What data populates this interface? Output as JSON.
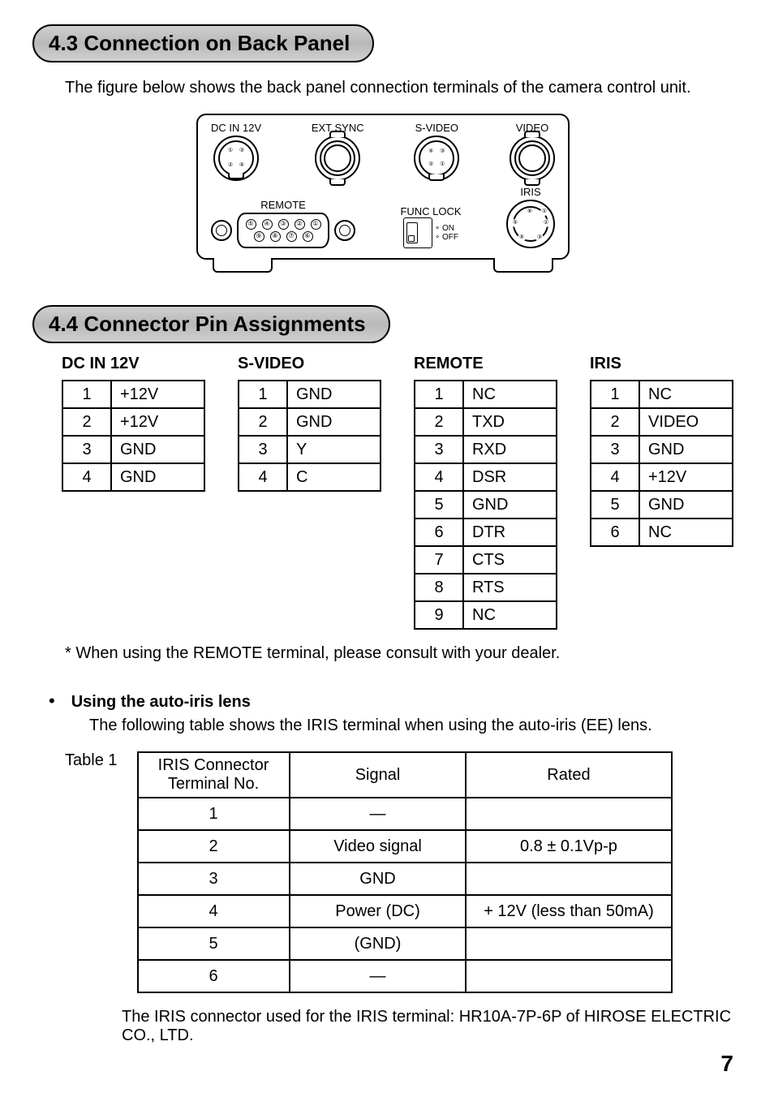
{
  "section43": {
    "title": "4.3  Connection on Back Panel",
    "intro": "The figure below shows the back panel connection terminals of the camera control unit."
  },
  "diagram": {
    "labels": {
      "dc": "DC IN 12V",
      "ext": "EXT SYNC",
      "svideo": "S-VIDEO",
      "video": "VIDEO",
      "remote": "REMOTE",
      "funclock": "FUNC LOCK",
      "iris": "IRIS",
      "on": "ON",
      "off": "OFF"
    }
  },
  "section44": {
    "title": "4.4  Connector Pin Assignments"
  },
  "pins": {
    "dc": {
      "title": "DC IN 12V",
      "rows": [
        [
          "1",
          "+12V"
        ],
        [
          "2",
          "+12V"
        ],
        [
          "3",
          "GND"
        ],
        [
          "4",
          "GND"
        ]
      ]
    },
    "svideo": {
      "title": "S-VIDEO",
      "rows": [
        [
          "1",
          "GND"
        ],
        [
          "2",
          "GND"
        ],
        [
          "3",
          "Y"
        ],
        [
          "4",
          "C"
        ]
      ]
    },
    "remote": {
      "title": "REMOTE",
      "rows": [
        [
          "1",
          "NC"
        ],
        [
          "2",
          "TXD"
        ],
        [
          "3",
          "RXD"
        ],
        [
          "4",
          "DSR"
        ],
        [
          "5",
          "GND"
        ],
        [
          "6",
          "DTR"
        ],
        [
          "7",
          "CTS"
        ],
        [
          "8",
          "RTS"
        ],
        [
          "9",
          "NC"
        ]
      ]
    },
    "iris": {
      "title": "IRIS",
      "rows": [
        [
          "1",
          "NC"
        ],
        [
          "2",
          "VIDEO"
        ],
        [
          "3",
          "GND"
        ],
        [
          "4",
          "+12V"
        ],
        [
          "5",
          "GND"
        ],
        [
          "6",
          "NC"
        ]
      ]
    }
  },
  "remote_note": "*   When using the REMOTE terminal, please consult with your dealer.",
  "autoiris": {
    "heading": "Using the auto-iris lens",
    "text": "The following table shows the IRIS terminal when using the auto-iris (EE) lens.",
    "table_label": "Table 1",
    "headers": [
      "IRIS Connector Terminal No.",
      "Signal",
      "Rated"
    ],
    "rows": [
      [
        "1",
        "—",
        ""
      ],
      [
        "2",
        "Video signal",
        "0.8 ± 0.1Vp-p"
      ],
      [
        "3",
        "GND",
        ""
      ],
      [
        "4",
        "Power (DC)",
        "+ 12V (less than 50mA)"
      ],
      [
        "5",
        "(GND)",
        ""
      ],
      [
        "6",
        "—",
        ""
      ]
    ],
    "footer": "The IRIS connector used for the IRIS terminal: HR10A-7P-6P of HIROSE ELECTRIC CO., LTD."
  },
  "page_number": "7"
}
